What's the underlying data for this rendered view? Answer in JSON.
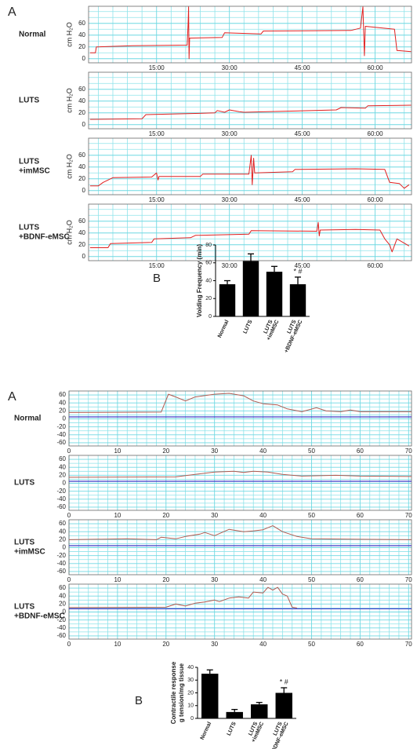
{
  "chart_data": [
    {
      "type": "line",
      "panel_label": "A",
      "title": [
        "Normal"
      ],
      "ylabel": "cm H₂O",
      "color": "#e02020",
      "grid": true,
      "x": [
        1.3,
        2.4,
        2.6,
        10,
        21.3,
        21.5,
        21.6,
        21.7,
        21.8,
        28.5,
        29,
        36.5,
        37,
        55,
        57,
        57.5,
        57.8,
        58,
        64,
        64.5,
        67.4
      ],
      "values": [
        10,
        10,
        20,
        22,
        23,
        60,
        88,
        0,
        35,
        36,
        44,
        42,
        47,
        48,
        52,
        88,
        5,
        55,
        50,
        14,
        12
      ],
      "xlim": [
        1,
        67.5
      ],
      "ylim": [
        -7,
        89
      ],
      "xticks": [
        {
          "value": 15,
          "label": "15:00"
        },
        {
          "value": 30,
          "label": "30:00"
        },
        {
          "value": 45,
          "label": "45:00"
        },
        {
          "value": 60,
          "label": "60:00"
        }
      ],
      "yticks": [
        0,
        20,
        40,
        60
      ],
      "x_minor_ticks": [
        3,
        6,
        9,
        12,
        18,
        21,
        24,
        27,
        33,
        36,
        39,
        42,
        48,
        51,
        54,
        57,
        63,
        66
      ],
      "y_minor_ticks": [
        10,
        30,
        50,
        70,
        80
      ]
    },
    {
      "type": "line",
      "title": [
        "LUTS"
      ],
      "ylabel": "cm H₂O",
      "color": "#e02020",
      "grid": true,
      "x": [
        1.3,
        12,
        12.8,
        23,
        27,
        27.5,
        29,
        30,
        32,
        33,
        52,
        53,
        58,
        58.5,
        67.4
      ],
      "values": [
        9,
        10,
        17,
        19,
        20,
        24,
        21,
        25,
        22,
        21,
        25,
        29,
        28,
        32,
        33
      ],
      "xlim": [
        1,
        67.5
      ],
      "ylim": [
        -7,
        89
      ],
      "xticks": [
        {
          "value": 15,
          "label": "15:00"
        },
        {
          "value": 30,
          "label": "30:00"
        },
        {
          "value": 45,
          "label": "45:00"
        },
        {
          "value": 60,
          "label": "60:00"
        }
      ],
      "yticks": [
        0,
        20,
        40,
        60
      ],
      "x_minor_ticks": [
        3,
        6,
        9,
        12,
        18,
        21,
        24,
        27,
        33,
        36,
        39,
        42,
        48,
        51,
        54,
        57,
        63,
        66
      ],
      "y_minor_ticks": [
        10,
        30,
        50,
        70,
        80
      ]
    },
    {
      "type": "line",
      "title": [
        "LUTS",
        "+imMSC"
      ],
      "ylabel": "cm H₂O",
      "color": "#e02020",
      "grid": true,
      "x": [
        1.3,
        3,
        4,
        6,
        14,
        15,
        15.3,
        15.5,
        24,
        24.5,
        34,
        34.5,
        34.7,
        35,
        35.2,
        43,
        43.5,
        56,
        62,
        63,
        65,
        66,
        67
      ],
      "values": [
        8,
        8,
        14,
        22,
        23,
        30,
        18,
        24,
        24,
        28,
        28,
        60,
        10,
        55,
        30,
        32,
        36,
        37,
        36,
        14,
        12,
        4,
        10
      ],
      "xlim": [
        1,
        67.5
      ],
      "ylim": [
        -7,
        89
      ],
      "xticks": [
        {
          "value": 15,
          "label": "15:00"
        },
        {
          "value": 30,
          "label": "30:00"
        },
        {
          "value": 45,
          "label": "45:00"
        },
        {
          "value": 60,
          "label": "60:00"
        }
      ],
      "yticks": [
        0,
        20,
        40,
        60
      ],
      "x_minor_ticks": [
        3,
        6,
        9,
        12,
        18,
        21,
        24,
        27,
        33,
        36,
        39,
        42,
        48,
        51,
        54,
        57,
        63,
        66
      ],
      "y_minor_ticks": [
        10,
        30,
        50,
        70,
        80
      ]
    },
    {
      "type": "line",
      "title": [
        "LUTS",
        "+BDNF-eMSC"
      ],
      "ylabel": "cm H₂O",
      "color": "#e02020",
      "grid": true,
      "x": [
        1.3,
        5,
        5.5,
        14,
        14.5,
        22,
        23,
        34,
        34.5,
        48,
        48.3,
        48.5,
        48.7,
        56,
        61,
        62,
        63,
        63.5,
        64.5,
        67
      ],
      "values": [
        15,
        15,
        22,
        24,
        30,
        32,
        36,
        38,
        44,
        43,
        58,
        35,
        45,
        46,
        45,
        30,
        20,
        8,
        30,
        18
      ],
      "xlim": [
        1,
        67.5
      ],
      "ylim": [
        -7,
        89
      ],
      "xticks": [
        {
          "value": 15,
          "label": "15:00"
        },
        {
          "value": 30,
          "label": "30:00"
        },
        {
          "value": 45,
          "label": "45:00"
        },
        {
          "value": 60,
          "label": "60:00"
        }
      ],
      "yticks": [
        0,
        20,
        40,
        60
      ],
      "x_minor_ticks": [
        3,
        6,
        9,
        12,
        18,
        21,
        24,
        27,
        33,
        36,
        39,
        42,
        48,
        51,
        54,
        57,
        63,
        66
      ],
      "y_minor_ticks": [
        10,
        30,
        50,
        70,
        80
      ]
    },
    {
      "type": "bar",
      "panel_label": "B",
      "ylabel": "Voiding Frequency (min)",
      "color": "#000000",
      "categories": [
        "Normal",
        "LUTS",
        [
          "LUTS",
          "+imMSC"
        ],
        [
          "LUTS",
          "+BDNF-eMSC"
        ]
      ],
      "values": [
        36,
        62,
        50,
        36
      ],
      "errors": [
        4,
        8,
        6,
        8
      ],
      "annotation": "* #",
      "ylim": [
        0,
        80
      ],
      "yticks": [
        0,
        20,
        40,
        60,
        80
      ]
    },
    {
      "type": "line",
      "panel_label": "A",
      "title": [
        "Normal"
      ],
      "color": "#b05a50",
      "grid": true,
      "reference_value": 5,
      "reference_color": "#3a3ac8",
      "x": [
        0,
        19,
        20.5,
        22,
        24,
        26,
        30,
        33,
        36,
        38,
        40,
        43,
        45,
        48,
        51,
        53,
        56,
        58,
        60,
        70.6
      ],
      "values": [
        16,
        17,
        62,
        55,
        45,
        55,
        62,
        64,
        58,
        45,
        38,
        35,
        25,
        18,
        28,
        20,
        18,
        22,
        18,
        18
      ],
      "xlim": [
        0,
        70.6
      ],
      "ylim": [
        -68,
        70
      ],
      "xticks": [
        0,
        10,
        20,
        30,
        40,
        50,
        60,
        70
      ],
      "yticks": [
        -60,
        -40,
        -20,
        0,
        20,
        40,
        60
      ],
      "x_minor_ticks": [
        2,
        4,
        6,
        8,
        12,
        14,
        16,
        18,
        22,
        24,
        26,
        28,
        32,
        34,
        36,
        38,
        42,
        44,
        46,
        48,
        52,
        54,
        56,
        58,
        62,
        64,
        66,
        68
      ],
      "y_minor_ticks": [
        -50,
        -30,
        -10,
        10,
        30,
        50
      ]
    },
    {
      "type": "line",
      "title": [
        "LUTS"
      ],
      "color": "#b05a50",
      "grid": true,
      "reference_value": 5,
      "reference_color": "#3a3ac8",
      "x": [
        0,
        22,
        26,
        30,
        34,
        36,
        38,
        41,
        44,
        48,
        55,
        60,
        70.6
      ],
      "values": [
        15,
        16,
        22,
        28,
        30,
        27,
        30,
        28,
        22,
        18,
        20,
        18,
        17
      ],
      "xlim": [
        0,
        70.6
      ],
      "ylim": [
        -68,
        70
      ],
      "xticks": [
        0,
        10,
        20,
        30,
        40,
        50,
        60,
        70
      ],
      "yticks": [
        -60,
        -40,
        -20,
        0,
        20,
        40,
        60
      ],
      "x_minor_ticks": [
        2,
        4,
        6,
        8,
        12,
        14,
        16,
        18,
        22,
        24,
        26,
        28,
        32,
        34,
        36,
        38,
        42,
        44,
        46,
        48,
        52,
        54,
        56,
        58,
        62,
        64,
        66,
        68
      ],
      "y_minor_ticks": [
        -50,
        -30,
        -10,
        10,
        30,
        50
      ]
    },
    {
      "type": "line",
      "title": [
        "LUTS",
        "+imMSC"
      ],
      "color": "#b05a50",
      "grid": true,
      "reference_value": 5,
      "reference_color": "#3a3ac8",
      "x": [
        0,
        12,
        18,
        19,
        22,
        24,
        27,
        28,
        30,
        33,
        36,
        38,
        40,
        42,
        44,
        47,
        50,
        60,
        70.6
      ],
      "values": [
        20,
        22,
        20,
        26,
        22,
        28,
        34,
        38,
        30,
        46,
        40,
        42,
        45,
        55,
        40,
        28,
        22,
        21,
        20
      ],
      "xlim": [
        0,
        70.6
      ],
      "ylim": [
        -68,
        70
      ],
      "xticks": [
        0,
        10,
        20,
        30,
        40,
        50,
        60,
        70
      ],
      "yticks": [
        -60,
        -40,
        -20,
        0,
        20,
        40,
        60
      ],
      "x_minor_ticks": [
        2,
        4,
        6,
        8,
        12,
        14,
        16,
        18,
        22,
        24,
        26,
        28,
        32,
        34,
        36,
        38,
        42,
        44,
        46,
        48,
        52,
        54,
        56,
        58,
        62,
        64,
        66,
        68
      ],
      "y_minor_ticks": [
        -50,
        -30,
        -10,
        10,
        30,
        50
      ]
    },
    {
      "type": "line",
      "title": [
        "LUTS",
        "+BDNF-eMSC"
      ],
      "color": "#b05a50",
      "grid": true,
      "reference_value": 8,
      "reference_color": "#3a3ac8",
      "x": [
        0,
        20,
        22,
        24,
        26,
        28,
        30,
        31,
        33,
        35,
        37,
        38,
        40,
        41,
        42,
        43,
        44,
        45,
        46,
        47
      ],
      "values": [
        11,
        12,
        20,
        15,
        22,
        25,
        30,
        26,
        35,
        38,
        35,
        50,
        48,
        62,
        55,
        62,
        45,
        40,
        12,
        10
      ],
      "xlim": [
        0,
        70.6
      ],
      "ylim": [
        -68,
        70
      ],
      "xticks": [
        0,
        10,
        20,
        30,
        40,
        50,
        60,
        70
      ],
      "yticks": [
        -60,
        -40,
        -20,
        0,
        20,
        40,
        60
      ],
      "x_minor_ticks": [
        2,
        4,
        6,
        8,
        12,
        14,
        16,
        18,
        22,
        24,
        26,
        28,
        32,
        34,
        36,
        38,
        42,
        44,
        46,
        48,
        52,
        54,
        56,
        58,
        62,
        64,
        66,
        68
      ],
      "y_minor_ticks": [
        -50,
        -30,
        -10,
        10,
        30,
        50
      ]
    },
    {
      "type": "bar",
      "panel_label": "B",
      "ylabel": [
        "Contractile response",
        "g tension/mg tissue"
      ],
      "color": "#000000",
      "categories": [
        "Normal",
        "LUTS",
        [
          "LUTS",
          "+imMSC"
        ],
        [
          "LUTS",
          "+BDNF-eMSC"
        ]
      ],
      "values": [
        35,
        5,
        11,
        20
      ],
      "errors": [
        3,
        2,
        1.5,
        4
      ],
      "annotation": "* #",
      "ylim": [
        0,
        40
      ],
      "yticks": [
        0,
        10,
        20,
        30,
        40
      ]
    }
  ]
}
